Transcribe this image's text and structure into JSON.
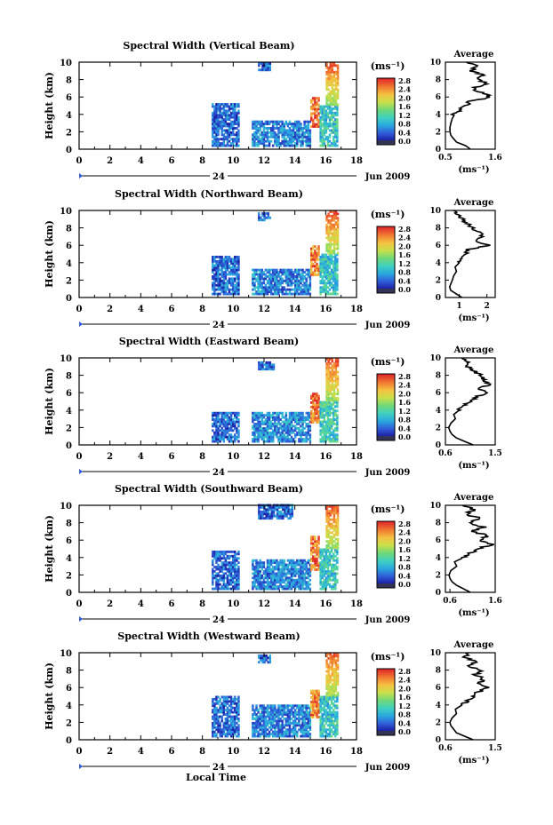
{
  "figure": {
    "x_axis_label": "Local Time",
    "date_label": "Jun 2009",
    "day_label": "24",
    "height_label": "Height (km)",
    "unit_label": "(ms⁻¹)",
    "average_title": "Average"
  },
  "colormap": {
    "stops": [
      "#1a1aa0",
      "#2f5bd8",
      "#2aa7e0",
      "#3fd0c0",
      "#6fd87a",
      "#c8e04a",
      "#f5c242",
      "#f07830",
      "#e02a2a"
    ],
    "colorbar_ticks": [
      "2.8",
      "2.4",
      "2.0",
      "1.6",
      "1.2",
      "0.8",
      "0.4",
      "0.0"
    ],
    "bottom_color": "#333355"
  },
  "chart_data": [
    {
      "type": "heatmap",
      "title": "Spectral Width (Vertical Beam)",
      "xlim": [
        0,
        18
      ],
      "ylim": [
        0,
        10
      ],
      "xticks": [
        "0",
        "2",
        "4",
        "6",
        "8",
        "10",
        "12",
        "14",
        "16",
        "18"
      ],
      "yticks": [
        "0",
        "2",
        "4",
        "6",
        "8",
        "10"
      ],
      "blocks": [
        {
          "t0": 8.6,
          "t1": 10.4,
          "h0": 0.3,
          "h1": 5.2,
          "level": 0.15
        },
        {
          "t0": 11.2,
          "t1": 15.0,
          "h0": 0.3,
          "h1": 3.2,
          "level": 0.2
        },
        {
          "t0": 15.0,
          "t1": 15.6,
          "h0": 2.5,
          "h1": 6.0,
          "level": 0.9
        },
        {
          "t0": 15.6,
          "t1": 16.8,
          "h0": 0.3,
          "h1": 5.0,
          "level": 0.35
        },
        {
          "t0": 16.0,
          "t1": 16.8,
          "h0": 5.0,
          "h1": 10.0,
          "level": 0.75
        },
        {
          "t0": 11.6,
          "t1": 12.4,
          "h0": 9.0,
          "h1": 10.0,
          "level": 0.15
        }
      ],
      "profile": {
        "xlim": [
          0.5,
          1.6
        ],
        "xticks": [
          "0.5",
          "1.6"
        ],
        "height": [
          0,
          0.4,
          0.8,
          1.2,
          1.6,
          2.0,
          2.5,
          3.0,
          3.5,
          4.0,
          4.5,
          5.0,
          5.5,
          6.0,
          6.5,
          7.0,
          7.5,
          8.0,
          8.5,
          9.0,
          9.5,
          10.0
        ],
        "width": [
          1.05,
          0.95,
          0.75,
          0.68,
          0.62,
          0.6,
          0.6,
          0.62,
          0.65,
          0.7,
          0.8,
          0.95,
          1.05,
          1.5,
          1.3,
          1.1,
          1.45,
          1.2,
          1.35,
          1.05,
          1.2,
          0.95
        ]
      }
    },
    {
      "type": "heatmap",
      "title": "Spectral Width (Northward Beam)",
      "xlim": [
        0,
        18
      ],
      "ylim": [
        0,
        10
      ],
      "xticks": [
        "0",
        "2",
        "4",
        "6",
        "8",
        "10",
        "12",
        "14",
        "16",
        "18"
      ],
      "yticks": [
        "0",
        "2",
        "4",
        "6",
        "8",
        "10"
      ],
      "blocks": [
        {
          "t0": 8.6,
          "t1": 10.4,
          "h0": 0.3,
          "h1": 4.8,
          "level": 0.15
        },
        {
          "t0": 11.2,
          "t1": 15.0,
          "h0": 0.3,
          "h1": 3.2,
          "level": 0.2
        },
        {
          "t0": 15.0,
          "t1": 15.6,
          "h0": 2.5,
          "h1": 6.0,
          "level": 0.85
        },
        {
          "t0": 15.6,
          "t1": 16.8,
          "h0": 0.3,
          "h1": 5.0,
          "level": 0.35
        },
        {
          "t0": 16.0,
          "t1": 16.8,
          "h0": 5.0,
          "h1": 10.0,
          "level": 0.75
        },
        {
          "t0": 11.6,
          "t1": 12.4,
          "h0": 8.8,
          "h1": 9.6,
          "level": 0.15
        }
      ],
      "profile": {
        "xlim": [
          0.5,
          2.3
        ],
        "xticks": [
          "1",
          "2"
        ],
        "height": [
          0,
          0.4,
          0.8,
          1.2,
          1.6,
          2.0,
          2.5,
          3.0,
          3.5,
          4.0,
          4.5,
          5.0,
          5.5,
          6.0,
          6.5,
          7.0,
          7.5,
          8.0,
          8.5,
          9.0,
          9.5,
          10.0
        ],
        "width": [
          1.1,
          0.9,
          0.7,
          0.65,
          0.7,
          0.75,
          0.8,
          0.9,
          0.85,
          1.0,
          1.1,
          1.2,
          1.3,
          2.1,
          1.6,
          1.9,
          1.7,
          1.5,
          1.3,
          1.1,
          0.95,
          0.8
        ]
      }
    },
    {
      "type": "heatmap",
      "title": "Spectral Width (Eastward Beam)",
      "xlim": [
        0,
        18
      ],
      "ylim": [
        0,
        10
      ],
      "xticks": [
        "0",
        "2",
        "4",
        "6",
        "8",
        "10",
        "12",
        "14",
        "16",
        "18"
      ],
      "yticks": [
        "0",
        "2",
        "4",
        "6",
        "8",
        "10"
      ],
      "blocks": [
        {
          "t0": 8.6,
          "t1": 10.4,
          "h0": 0.3,
          "h1": 3.6,
          "level": 0.15
        },
        {
          "t0": 11.2,
          "t1": 15.0,
          "h0": 0.3,
          "h1": 3.8,
          "level": 0.22
        },
        {
          "t0": 15.0,
          "t1": 15.6,
          "h0": 2.5,
          "h1": 5.8,
          "level": 0.9
        },
        {
          "t0": 15.6,
          "t1": 16.8,
          "h0": 0.3,
          "h1": 5.0,
          "level": 0.38
        },
        {
          "t0": 16.0,
          "t1": 16.8,
          "h0": 5.0,
          "h1": 10.0,
          "level": 0.75
        },
        {
          "t0": 11.6,
          "t1": 12.6,
          "h0": 8.6,
          "h1": 9.6,
          "level": 0.15
        }
      ],
      "profile": {
        "xlim": [
          0.6,
          1.5
        ],
        "xticks": [
          "0.6",
          "1.5"
        ],
        "height": [
          0,
          0.4,
          0.8,
          1.2,
          1.6,
          2.0,
          2.5,
          3.0,
          3.5,
          4.0,
          4.5,
          5.0,
          5.5,
          6.0,
          6.5,
          7.0,
          7.5,
          8.0,
          8.5,
          9.0,
          9.5,
          10.0
        ],
        "width": [
          1.1,
          0.95,
          0.8,
          0.72,
          0.68,
          0.66,
          0.7,
          0.78,
          0.75,
          0.85,
          0.95,
          1.05,
          1.15,
          1.35,
          1.2,
          1.4,
          1.3,
          1.25,
          1.1,
          1.0,
          1.05,
          0.9
        ]
      }
    },
    {
      "type": "heatmap",
      "title": "Spectral Width (Southward Beam)",
      "xlim": [
        0,
        18
      ],
      "ylim": [
        0,
        10
      ],
      "xticks": [
        "0",
        "2",
        "4",
        "6",
        "8",
        "10",
        "12",
        "14",
        "16",
        "18"
      ],
      "yticks": [
        "0",
        "2",
        "4",
        "6",
        "8",
        "10"
      ],
      "blocks": [
        {
          "t0": 8.6,
          "t1": 10.4,
          "h0": 0.3,
          "h1": 4.8,
          "level": 0.15
        },
        {
          "t0": 11.2,
          "t1": 15.0,
          "h0": 0.3,
          "h1": 3.6,
          "level": 0.2
        },
        {
          "t0": 15.0,
          "t1": 15.6,
          "h0": 2.5,
          "h1": 6.5,
          "level": 0.88
        },
        {
          "t0": 15.6,
          "t1": 16.8,
          "h0": 0.3,
          "h1": 5.0,
          "level": 0.35
        },
        {
          "t0": 16.0,
          "t1": 16.8,
          "h0": 5.0,
          "h1": 10.0,
          "level": 0.72
        },
        {
          "t0": 11.6,
          "t1": 13.8,
          "h0": 8.4,
          "h1": 10.0,
          "level": 0.15
        }
      ],
      "profile": {
        "xlim": [
          0.5,
          1.6
        ],
        "xticks": [
          "0.6",
          "1.6"
        ],
        "height": [
          0,
          0.4,
          0.8,
          1.2,
          1.6,
          2.0,
          2.5,
          3.0,
          3.5,
          4.0,
          4.5,
          5.0,
          5.5,
          6.0,
          6.5,
          7.0,
          7.5,
          8.0,
          8.5,
          9.0,
          9.5,
          10.0
        ],
        "width": [
          1.05,
          0.9,
          0.75,
          0.65,
          0.6,
          0.58,
          0.62,
          0.75,
          0.7,
          0.9,
          1.05,
          1.2,
          1.55,
          1.25,
          1.45,
          1.1,
          1.35,
          1.0,
          1.25,
          0.95,
          1.15,
          0.9
        ]
      }
    },
    {
      "type": "heatmap",
      "title": "Spectral Width (Westward Beam)",
      "xlim": [
        0,
        18
      ],
      "ylim": [
        0,
        10
      ],
      "xticks": [
        "0",
        "2",
        "4",
        "6",
        "8",
        "10",
        "12",
        "14",
        "16",
        "18"
      ],
      "yticks": [
        "0",
        "2",
        "4",
        "6",
        "8",
        "10"
      ],
      "blocks": [
        {
          "t0": 8.6,
          "t1": 10.4,
          "h0": 0.3,
          "h1": 5.0,
          "level": 0.15
        },
        {
          "t0": 11.2,
          "t1": 15.0,
          "h0": 0.3,
          "h1": 4.0,
          "level": 0.2
        },
        {
          "t0": 15.0,
          "t1": 15.6,
          "h0": 2.5,
          "h1": 5.6,
          "level": 0.85
        },
        {
          "t0": 15.6,
          "t1": 16.8,
          "h0": 0.3,
          "h1": 5.0,
          "level": 0.35
        },
        {
          "t0": 16.0,
          "t1": 16.8,
          "h0": 5.0,
          "h1": 10.0,
          "level": 0.72
        },
        {
          "t0": 11.6,
          "t1": 12.4,
          "h0": 8.8,
          "h1": 9.8,
          "level": 0.15
        }
      ],
      "profile": {
        "xlim": [
          0.6,
          1.5
        ],
        "xticks": [
          "0.6",
          "1.5"
        ],
        "height": [
          0,
          0.4,
          0.8,
          1.2,
          1.6,
          2.0,
          2.5,
          3.0,
          3.5,
          4.0,
          4.5,
          5.0,
          5.5,
          6.0,
          6.5,
          7.0,
          7.5,
          8.0,
          8.5,
          9.0,
          9.5,
          10.0
        ],
        "width": [
          1.1,
          0.95,
          0.8,
          0.75,
          0.7,
          0.68,
          0.72,
          0.8,
          0.78,
          0.9,
          1.0,
          1.1,
          1.2,
          1.35,
          1.2,
          1.3,
          1.15,
          1.25,
          1.0,
          1.15,
          0.95,
          1.05
        ]
      }
    }
  ]
}
